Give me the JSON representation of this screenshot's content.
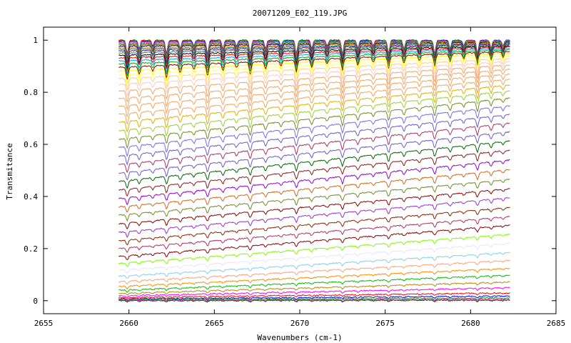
{
  "chart_data": {
    "type": "line",
    "title": "20071209_E02_119.JPG",
    "xlabel": "Wavenumbers (cm-1)",
    "ylabel": "Transmitance",
    "xlim": [
      2655,
      2685
    ],
    "ylim": [
      -0.05,
      1.05
    ],
    "x_ticks": [
      2655,
      2660,
      2665,
      2670,
      2675,
      2680,
      2685
    ],
    "y_ticks": [
      0,
      0.2,
      0.4,
      0.6,
      0.8,
      1
    ],
    "x_tick_labels": [
      "2655",
      "2660",
      "2665",
      "2670",
      "2675",
      "2680",
      "2685"
    ],
    "y_tick_labels": [
      "0",
      "0.2",
      "0.4",
      "0.6",
      "0.8",
      "1"
    ],
    "grid": false,
    "legend": "none",
    "x_range_of_data": [
      2659.4,
      2682.3
    ],
    "absorption_lines_cm1": [
      2659.9,
      2660.6,
      2661.4,
      2662.2,
      2663.0,
      2663.8,
      2664.6,
      2665.5,
      2666.3,
      2667.1,
      2668.0,
      2668.9,
      2669.8,
      2670.7,
      2671.6,
      2672.5,
      2673.4,
      2674.3,
      2675.2,
      2676.1,
      2677.0,
      2677.9,
      2678.8,
      2679.6,
      2680.4,
      2681.2,
      2681.9
    ],
    "series": [
      {
        "start": 1.0,
        "end": 1.0,
        "color": "#ff0000"
      },
      {
        "start": 0.998,
        "end": 0.999,
        "color": "#00c000"
      },
      {
        "start": 0.996,
        "end": 0.998,
        "color": "#0000ff"
      },
      {
        "start": 0.993,
        "end": 0.997,
        "color": "#ff00ff"
      },
      {
        "start": 0.99,
        "end": 0.996,
        "color": "#00c0c0"
      },
      {
        "start": 0.986,
        "end": 0.995,
        "color": "#a0522d"
      },
      {
        "start": 0.982,
        "end": 0.994,
        "color": "#808000"
      },
      {
        "start": 0.977,
        "end": 0.992,
        "color": "#000080"
      },
      {
        "start": 0.972,
        "end": 0.99,
        "color": "#ff8c00"
      },
      {
        "start": 0.966,
        "end": 0.988,
        "color": "#008080"
      },
      {
        "start": 0.959,
        "end": 0.985,
        "color": "#800080"
      },
      {
        "start": 0.951,
        "end": 0.982,
        "color": "#2e8b57"
      },
      {
        "start": 0.942,
        "end": 0.978,
        "color": "#000000"
      },
      {
        "start": 0.932,
        "end": 0.974,
        "color": "#ff0000"
      },
      {
        "start": 0.921,
        "end": 0.969,
        "color": "#00a0ff"
      },
      {
        "start": 0.909,
        "end": 0.963,
        "color": "#00b000"
      },
      {
        "start": 0.896,
        "end": 0.957,
        "color": "#8b0000"
      },
      {
        "start": 0.882,
        "end": 0.95,
        "color": "#ffff00"
      },
      {
        "start": 0.867,
        "end": 0.94,
        "color": "#ffff80"
      },
      {
        "start": 0.852,
        "end": 0.93,
        "color": "#ffd27f"
      },
      {
        "start": 0.83,
        "end": 0.918,
        "color": "#ffc9c9"
      },
      {
        "start": 0.805,
        "end": 0.905,
        "color": "#f4a460"
      },
      {
        "start": 0.776,
        "end": 0.888,
        "color": "#f4a460"
      },
      {
        "start": 0.747,
        "end": 0.87,
        "color": "#f4a460"
      },
      {
        "start": 0.716,
        "end": 0.85,
        "color": "#f4a460"
      },
      {
        "start": 0.685,
        "end": 0.828,
        "color": "#e0b000"
      },
      {
        "start": 0.652,
        "end": 0.805,
        "color": "#9acd32"
      },
      {
        "start": 0.62,
        "end": 0.778,
        "color": "#6b8e23"
      },
      {
        "start": 0.588,
        "end": 0.748,
        "color": "#7b68ee"
      },
      {
        "start": 0.555,
        "end": 0.715,
        "color": "#6a5acd"
      },
      {
        "start": 0.522,
        "end": 0.682,
        "color": "#b03060"
      },
      {
        "start": 0.49,
        "end": 0.648,
        "color": "#6a5acd"
      },
      {
        "start": 0.458,
        "end": 0.613,
        "color": "#006400"
      },
      {
        "start": 0.425,
        "end": 0.578,
        "color": "#8b1a1a"
      },
      {
        "start": 0.392,
        "end": 0.54,
        "color": "#9400d3"
      },
      {
        "start": 0.36,
        "end": 0.503,
        "color": "#d2691e"
      },
      {
        "start": 0.328,
        "end": 0.466,
        "color": "#6b8e23"
      },
      {
        "start": 0.295,
        "end": 0.43,
        "color": "#8b0000"
      },
      {
        "start": 0.262,
        "end": 0.395,
        "color": "#9932cc"
      },
      {
        "start": 0.23,
        "end": 0.358,
        "color": "#8b2500"
      },
      {
        "start": 0.2,
        "end": 0.323,
        "color": "#b03060"
      },
      {
        "start": 0.17,
        "end": 0.29,
        "color": "#8b0000"
      },
      {
        "start": 0.143,
        "end": 0.255,
        "color": "#7fff00"
      },
      {
        "start": 0.117,
        "end": 0.22,
        "color": "#e6e6fa"
      },
      {
        "start": 0.094,
        "end": 0.185,
        "color": "#87ceeb"
      },
      {
        "start": 0.073,
        "end": 0.155,
        "color": "#ffa07a"
      },
      {
        "start": 0.055,
        "end": 0.125,
        "color": "#ff8c00"
      },
      {
        "start": 0.04,
        "end": 0.098,
        "color": "#00c000"
      },
      {
        "start": 0.028,
        "end": 0.072,
        "color": "#b8860b"
      },
      {
        "start": 0.019,
        "end": 0.05,
        "color": "#ff00ff"
      },
      {
        "start": 0.012,
        "end": 0.03,
        "color": "#ff0000"
      },
      {
        "start": 0.007,
        "end": 0.018,
        "color": "#0000ff"
      },
      {
        "start": 0.004,
        "end": 0.01,
        "color": "#00a000"
      },
      {
        "start": 0.002,
        "end": 0.005,
        "color": "#ff1493"
      },
      {
        "start": 0.0,
        "end": 0.002,
        "color": "#404040"
      }
    ]
  }
}
